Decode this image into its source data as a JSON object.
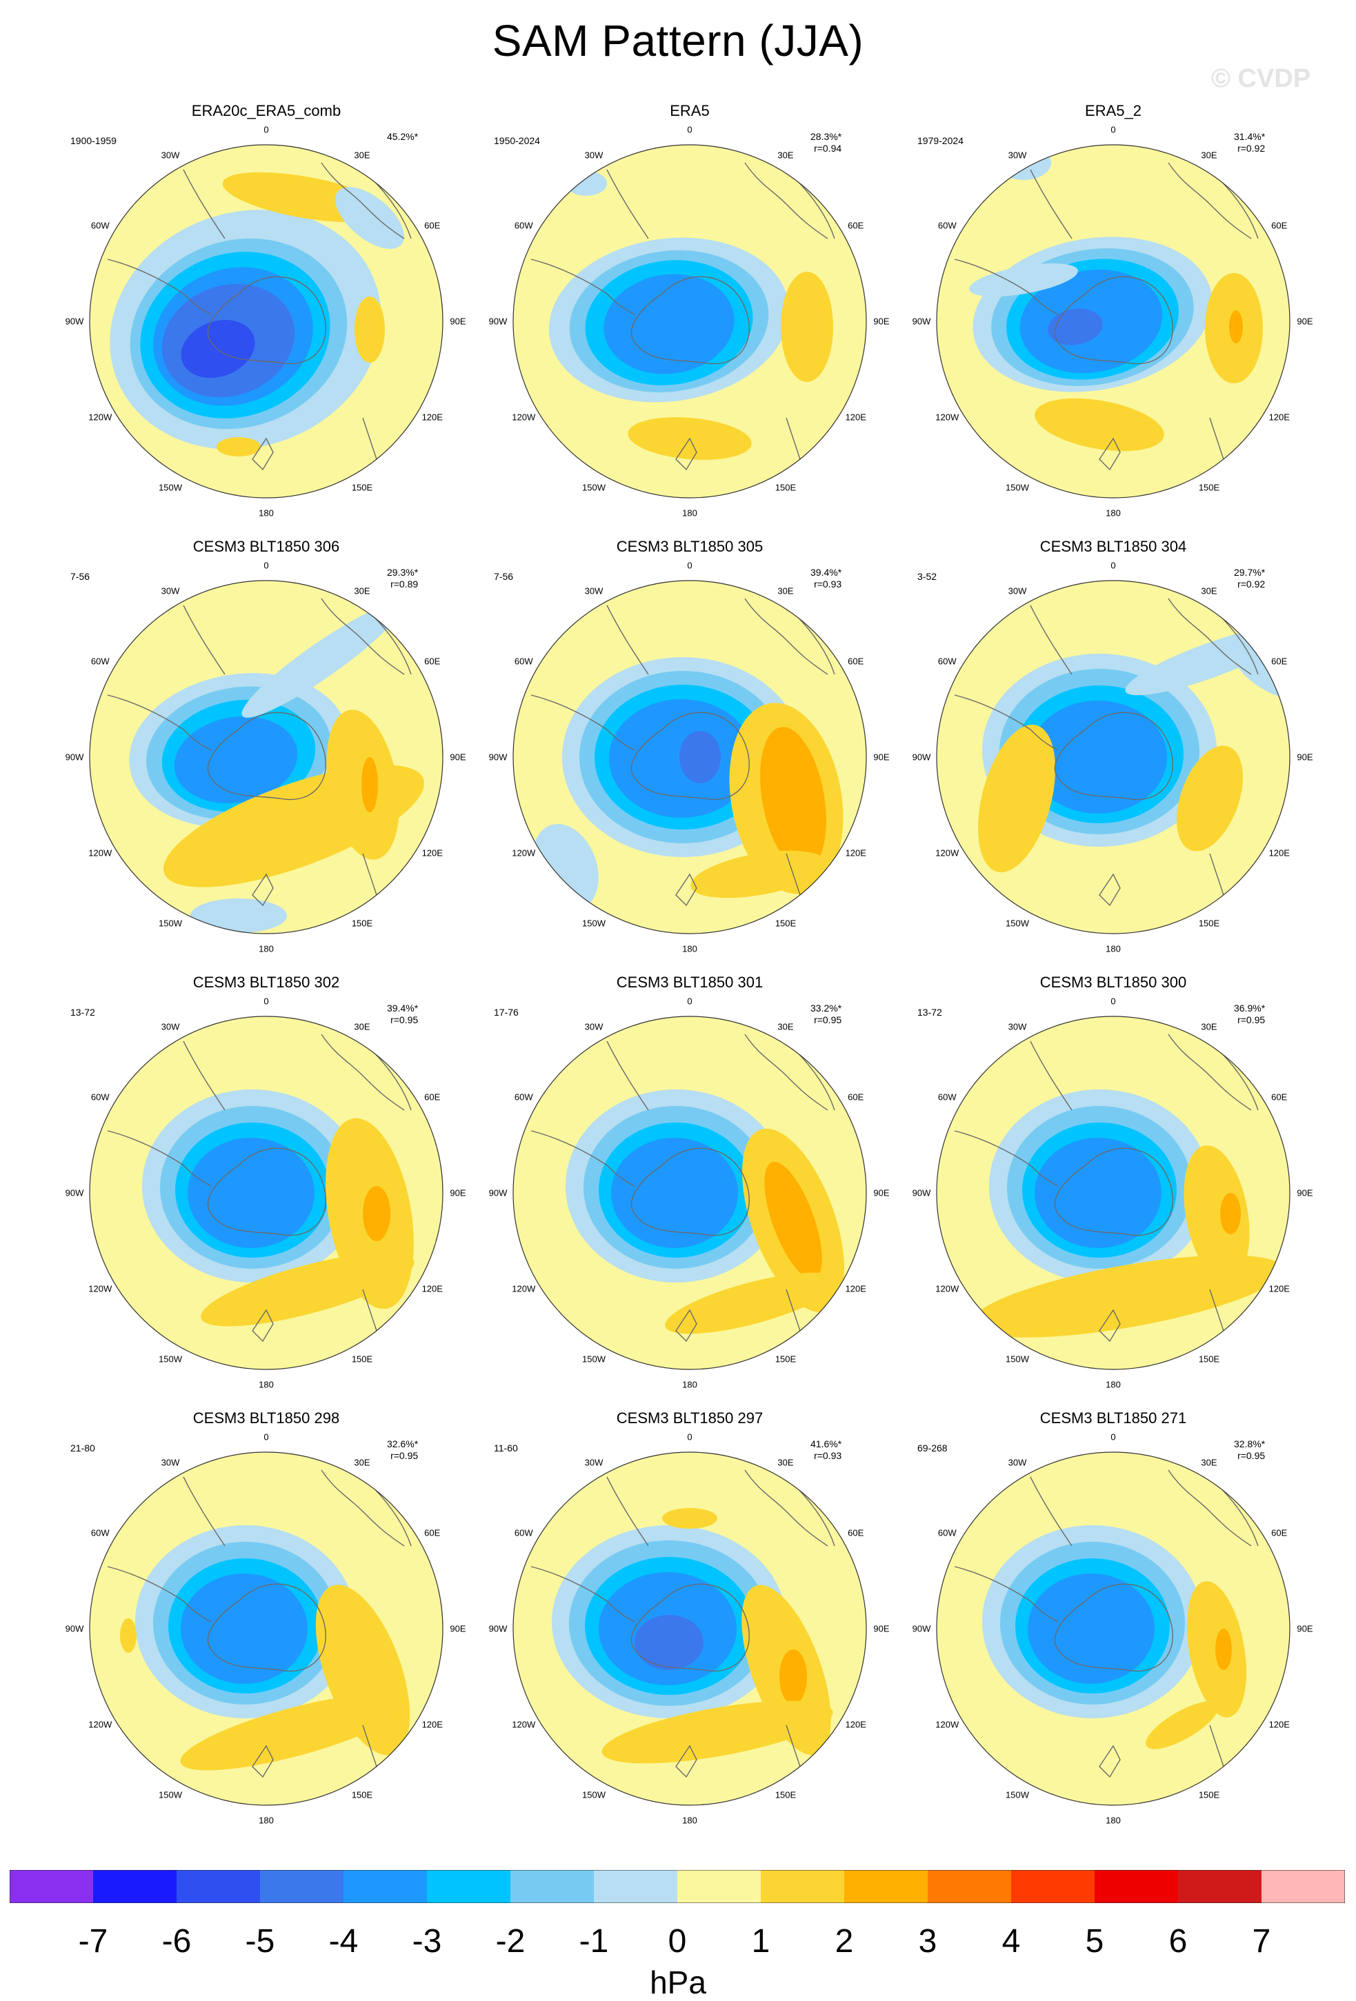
{
  "title": "SAM Pattern (JJA)",
  "watermark": "© CVDP",
  "colors": {
    "levels": [
      "#8a2ff0",
      "#1a1aff",
      "#2f4ff0",
      "#3b78ec",
      "#1e98ff",
      "#00c4ff",
      "#77cbf2",
      "#b7def2",
      "#fbf79e",
      "#fbd632",
      "#ffb000",
      "#ff7a00",
      "#ff3c00",
      "#ee0000",
      "#d01a1a",
      "#ffb6b6"
    ],
    "continents": "#6a6a6a"
  },
  "colorbar": {
    "labels": [
      "-7",
      "-6",
      "-5",
      "-4",
      "-3",
      "-2",
      "-1",
      "0",
      "1",
      "2",
      "3",
      "4",
      "5",
      "6",
      "7"
    ],
    "units": "hPa"
  },
  "longitude_labels": [
    "0",
    "30E",
    "60E",
    "90E",
    "120E",
    "150E",
    "180",
    "150W",
    "120W",
    "90W",
    "60W",
    "30W"
  ],
  "panels": [
    {
      "title": "ERA20c_ERA5_comb",
      "period": "1900-1959",
      "pct": "45.2%*",
      "r": ""
    },
    {
      "title": "ERA5",
      "period": "1950-2024",
      "pct": "28.3%*",
      "r": "r=0.94"
    },
    {
      "title": "ERA5_2",
      "period": "1979-2024",
      "pct": "31.4%*",
      "r": "r=0.92"
    },
    {
      "title": "CESM3 BLT1850 306",
      "period": "7-56",
      "pct": "29.3%*",
      "r": "r=0.89"
    },
    {
      "title": "CESM3 BLT1850 305",
      "period": "7-56",
      "pct": "39.4%*",
      "r": "r=0.93"
    },
    {
      "title": "CESM3 BLT1850 304",
      "period": "3-52",
      "pct": "29.7%*",
      "r": "r=0.92"
    },
    {
      "title": "CESM3 BLT1850 302",
      "period": "13-72",
      "pct": "39.4%*",
      "r": "r=0.95"
    },
    {
      "title": "CESM3 BLT1850 301",
      "period": "17-76",
      "pct": "33.2%*",
      "r": "r=0.95"
    },
    {
      "title": "CESM3 BLT1850 300",
      "period": "13-72",
      "pct": "36.9%*",
      "r": "r=0.95"
    },
    {
      "title": "CESM3 BLT1850 298",
      "period": "21-80",
      "pct": "32.6%*",
      "r": "r=0.95"
    },
    {
      "title": "CESM3 BLT1850 297",
      "period": "11-60",
      "pct": "41.6%*",
      "r": "r=0.93"
    },
    {
      "title": "CESM3 BLT1850 271",
      "period": "69-268",
      "pct": "32.8%*",
      "r": "r=0.95"
    }
  ]
}
